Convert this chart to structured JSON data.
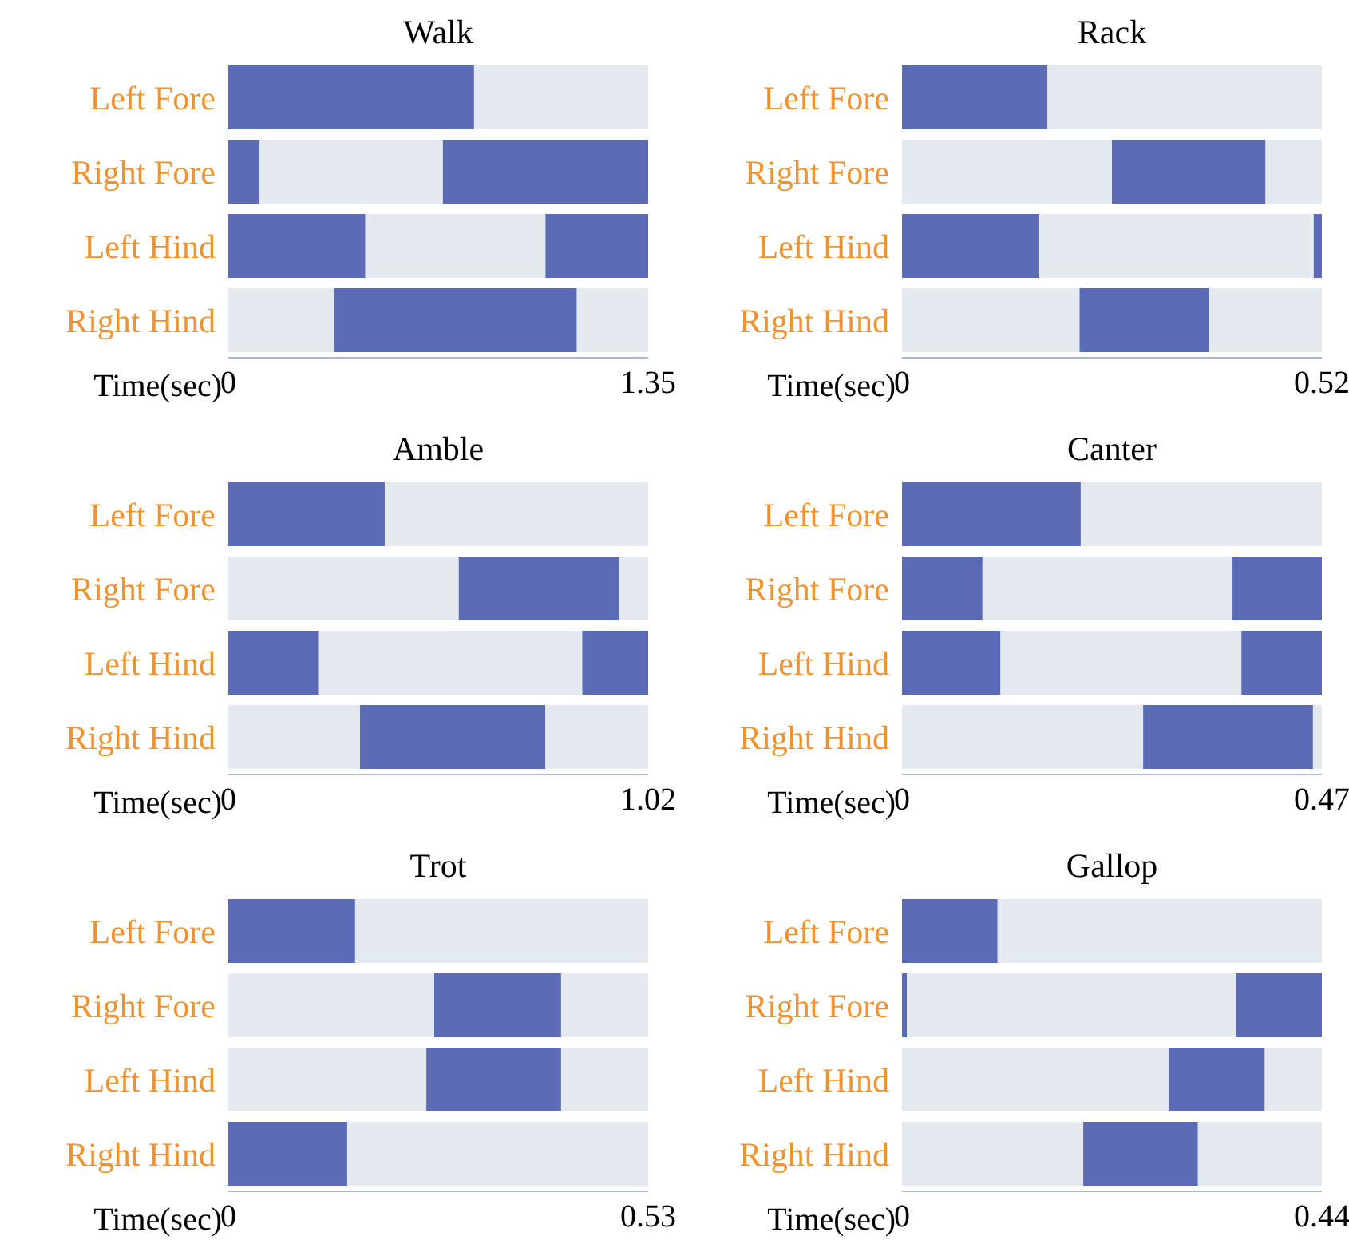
{
  "chart_data": [
    {
      "type": "bar",
      "orientation": "horizontal",
      "title": "Walk",
      "xlabel": "Time(sec)",
      "categories": [
        "Left Fore",
        "Right Fore",
        "Left Hind",
        "Right Hind"
      ],
      "xlim": [
        0,
        1.35
      ],
      "xticks": [
        0,
        1.35
      ],
      "series": [
        {
          "color": "#5b6bb5",
          "values": [
            0.79,
            0.1,
            0.44,
            0.78
          ],
          "base": [
            0,
            0,
            0,
            0.34
          ]
        },
        {
          "color": "#5b6bb5",
          "values": [
            null,
            0.66,
            0.33,
            null
          ],
          "base": [
            null,
            0.69,
            1.02,
            null
          ]
        }
      ]
    },
    {
      "type": "bar",
      "orientation": "horizontal",
      "title": "Rack",
      "xlabel": "Time(sec)",
      "categories": [
        "Left Fore",
        "Right Fore",
        "Left Hind",
        "Right Hind"
      ],
      "xlim": [
        0,
        0.52
      ],
      "xticks": [
        0,
        0.52
      ],
      "series": [
        {
          "color": "#5b6bb5",
          "values": [
            0.18,
            0.19,
            0.17,
            0.16
          ],
          "base": [
            0,
            0.26,
            0,
            0.22
          ]
        },
        {
          "color": "#5b6bb5",
          "values": [
            null,
            null,
            0.01,
            null
          ],
          "base": [
            null,
            null,
            0.51,
            null
          ]
        }
      ]
    },
    {
      "type": "bar",
      "orientation": "horizontal",
      "title": "Amble",
      "xlabel": "Time(sec)",
      "categories": [
        "Left Fore",
        "Right Fore",
        "Left Hind",
        "Right Hind"
      ],
      "xlim": [
        0,
        1.02
      ],
      "xticks": [
        0,
        1.02
      ],
      "series": [
        {
          "color": "#5b6bb5",
          "values": [
            0.38,
            0.39,
            0.22,
            0.45
          ],
          "base": [
            0,
            0.56,
            0,
            0.32
          ]
        },
        {
          "color": "#5b6bb5",
          "values": [
            null,
            null,
            0.16,
            null
          ],
          "base": [
            null,
            null,
            0.86,
            null
          ]
        }
      ]
    },
    {
      "type": "bar",
      "orientation": "horizontal",
      "title": "Canter",
      "xlabel": "Time(sec)",
      "categories": [
        "Left Fore",
        "Right Fore",
        "Left Hind",
        "Right Hind"
      ],
      "xlim": [
        0,
        0.47
      ],
      "xticks": [
        0,
        0.47
      ],
      "series": [
        {
          "color": "#5b6bb5",
          "values": [
            0.2,
            0.09,
            0.11,
            0.19
          ],
          "base": [
            0,
            0,
            0,
            0.27
          ]
        },
        {
          "color": "#5b6bb5",
          "values": [
            null,
            0.1,
            0.09,
            null
          ],
          "base": [
            null,
            0.37,
            0.38,
            null
          ]
        }
      ]
    },
    {
      "type": "bar",
      "orientation": "horizontal",
      "title": "Trot",
      "xlabel": "Time(sec)",
      "categories": [
        "Left Fore",
        "Right Fore",
        "Left Hind",
        "Right Hind"
      ],
      "xlim": [
        0,
        0.53
      ],
      "xticks": [
        0,
        0.53
      ],
      "series": [
        {
          "color": "#5b6bb5",
          "values": [
            0.16,
            0.16,
            0.17,
            0.15
          ],
          "base": [
            0,
            0.26,
            0.25,
            0
          ]
        }
      ]
    },
    {
      "type": "bar",
      "orientation": "horizontal",
      "title": "Gallop",
      "xlabel": "Time(sec)",
      "categories": [
        "Left Fore",
        "Right Fore",
        "Left Hind",
        "Right Hind"
      ],
      "xlim": [
        0,
        0.44
      ],
      "xticks": [
        0,
        0.44
      ],
      "series": [
        {
          "color": "#5b6bb5",
          "values": [
            0.1,
            0.005,
            0.1,
            0.12
          ],
          "base": [
            0,
            0,
            0.28,
            0.19
          ]
        },
        {
          "color": "#5b6bb5",
          "values": [
            null,
            0.09,
            null,
            null
          ],
          "base": [
            null,
            0.35,
            null,
            null
          ]
        }
      ]
    }
  ]
}
